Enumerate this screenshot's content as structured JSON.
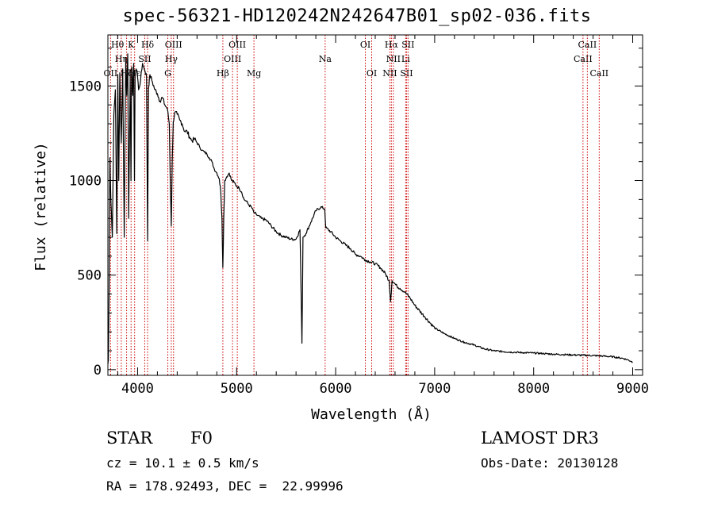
{
  "title": "spec-56321-HD120242N242647B01_sp02-036.fits",
  "footer": {
    "class_label": "STAR",
    "subclass": "F0",
    "survey": "LAMOST DR3",
    "cz": "cz = 10.1 ± 0.5 km/s",
    "obs_date": "Obs-Date: 20130128",
    "coords": "RA = 178.92493, DEC =  22.99996"
  },
  "colors": {
    "spectrum": "#000000",
    "line_marker": "#cc0000",
    "axis": "#000000"
  },
  "chart_data": {
    "type": "line",
    "title": "spec-56321-HD120242N242647B01_sp02-036.fits",
    "xlabel": "Wavelength (Å)",
    "ylabel": "Flux (relative)",
    "xlim": [
      3700,
      9100
    ],
    "ylim": [
      -30,
      1770
    ],
    "xticks": [
      4000,
      5000,
      6000,
      7000,
      8000,
      9000
    ],
    "yticks": [
      0,
      500,
      1000,
      1500
    ],
    "series": [
      {
        "name": "flux",
        "x": [
          3700,
          3705,
          3712,
          3720,
          3730,
          3745,
          3760,
          3775,
          3790,
          3800,
          3810,
          3820,
          3835,
          3850,
          3865,
          3880,
          3890,
          3900,
          3910,
          3925,
          3933,
          3940,
          3950,
          3960,
          3968,
          3975,
          3985,
          3995,
          4010,
          4030,
          4050,
          4075,
          4090,
          4101,
          4110,
          4125,
          4150,
          4175,
          4200,
          4225,
          4250,
          4275,
          4300,
          4320,
          4330,
          4340,
          4350,
          4360,
          4375,
          4400,
          4425,
          4450,
          4475,
          4500,
          4525,
          4550,
          4575,
          4600,
          4625,
          4650,
          4675,
          4700,
          4725,
          4750,
          4775,
          4800,
          4825,
          4840,
          4852,
          4861,
          4870,
          4880,
          4900,
          4925,
          4950,
          4975,
          5000,
          5025,
          5050,
          5075,
          5100,
          5125,
          5150,
          5175,
          5200,
          5250,
          5300,
          5350,
          5400,
          5450,
          5500,
          5550,
          5600,
          5640,
          5660,
          5670,
          5700,
          5750,
          5800,
          5850,
          5890,
          5900,
          5950,
          6000,
          6050,
          6100,
          6150,
          6200,
          6250,
          6300,
          6350,
          6400,
          6450,
          6500,
          6540,
          6555,
          6563,
          6570,
          6590,
          6620,
          6650,
          6700,
          6750,
          6800,
          6850,
          6900,
          6950,
          7000,
          7100,
          7200,
          7300,
          7400,
          7500,
          7600,
          7700,
          7800,
          7900,
          8000,
          8100,
          8200,
          8300,
          8400,
          8500,
          8600,
          8700,
          8800,
          8900,
          8960,
          9000
        ],
        "y": [
          30,
          50,
          400,
          1120,
          900,
          700,
          1350,
          1480,
          720,
          1560,
          1000,
          1570,
          1200,
          1590,
          700,
          1650,
          1450,
          1670,
          800,
          1550,
          1000,
          1600,
          1450,
          1620,
          1000,
          1560,
          1590,
          1580,
          1480,
          1530,
          1620,
          1580,
          1550,
          680,
          1490,
          1560,
          1520,
          1480,
          1460,
          1420,
          1440,
          1400,
          1380,
          1300,
          1000,
          760,
          1100,
          1310,
          1360,
          1350,
          1320,
          1300,
          1260,
          1260,
          1230,
          1210,
          1220,
          1200,
          1180,
          1160,
          1150,
          1140,
          1120,
          1100,
          1060,
          1040,
          1010,
          940,
          800,
          540,
          800,
          1000,
          1020,
          1040,
          1000,
          990,
          970,
          960,
          940,
          900,
          890,
          870,
          860,
          830,
          820,
          800,
          790,
          760,
          730,
          710,
          700,
          690,
          690,
          740,
          140,
          700,
          720,
          780,
          840,
          860,
          850,
          750,
          730,
          700,
          680,
          660,
          640,
          610,
          600,
          580,
          570,
          560,
          540,
          510,
          470,
          360,
          410,
          470,
          460,
          440,
          430,
          410,
          380,
          340,
          310,
          280,
          250,
          220,
          190,
          165,
          145,
          130,
          110,
          100,
          95,
          92,
          90,
          88,
          85,
          82,
          80,
          78,
          76,
          75,
          72,
          68,
          60,
          50,
          40
        ]
      }
    ],
    "line_markers": [
      {
        "label": "OII",
        "wavelength": 3727,
        "row": 2
      },
      {
        "label": "Hθ",
        "wavelength": 3797,
        "row": 0
      },
      {
        "label": "Hη",
        "wavelength": 3835,
        "row": 1
      },
      {
        "label": "Hζ",
        "wavelength": 3889,
        "row": 2
      },
      {
        "label": "K",
        "wavelength": 3934,
        "row": 0
      },
      {
        "label": "Hε",
        "wavelength": 3970,
        "row": 2
      },
      {
        "label": "SII",
        "wavelength": 4072,
        "row": 1
      },
      {
        "label": "Hδ",
        "wavelength": 4101,
        "row": 0
      },
      {
        "label": "G",
        "wavelength": 4305,
        "row": 2
      },
      {
        "label": "Hγ",
        "wavelength": 4340,
        "row": 1
      },
      {
        "label": "OIII",
        "wavelength": 4363,
        "row": 0
      },
      {
        "label": "Hβ",
        "wavelength": 4861,
        "row": 2
      },
      {
        "label": "OIII",
        "wavelength": 4959,
        "row": 1
      },
      {
        "label": "OIII",
        "wavelength": 5007,
        "row": 0
      },
      {
        "label": "Mg",
        "wavelength": 5175,
        "row": 2
      },
      {
        "label": "Na",
        "wavelength": 5894,
        "row": 1
      },
      {
        "label": "OI",
        "wavelength": 6300,
        "row": 0
      },
      {
        "label": "OI",
        "wavelength": 6364,
        "row": 2
      },
      {
        "label": "NII",
        "wavelength": 6548,
        "row": 2
      },
      {
        "label": "Hα",
        "wavelength": 6563,
        "row": 0
      },
      {
        "label": "NII",
        "wavelength": 6583,
        "row": 1
      },
      {
        "label": "Li",
        "wavelength": 6707,
        "row": 1
      },
      {
        "label": "SII",
        "wavelength": 6716,
        "row": 2
      },
      {
        "label": "SII",
        "wavelength": 6731,
        "row": 0
      },
      {
        "label": "CaII",
        "wavelength": 8498,
        "row": 1
      },
      {
        "label": "CaII",
        "wavelength": 8542,
        "row": 0
      },
      {
        "label": "CaII",
        "wavelength": 8662,
        "row": 2
      }
    ]
  }
}
